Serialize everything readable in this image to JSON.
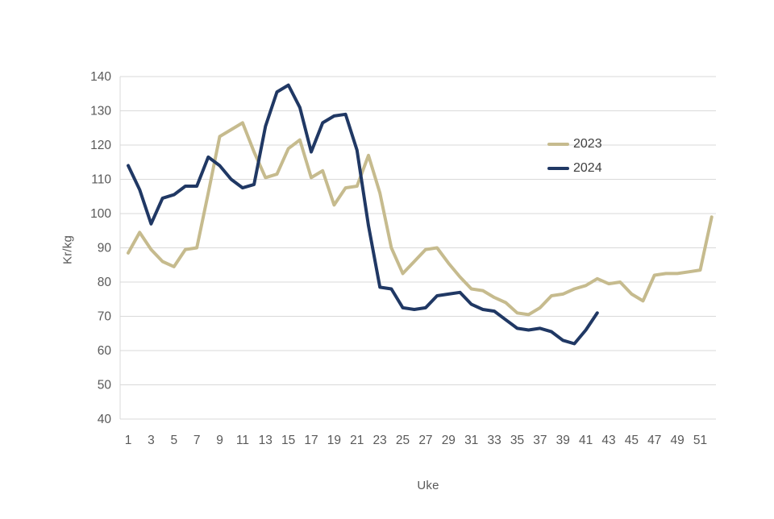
{
  "chart_data": {
    "type": "line",
    "title": "",
    "xlabel": "Uke",
    "ylabel": "Kr/kg",
    "ylim": [
      40,
      140
    ],
    "yticks": [
      140,
      130,
      120,
      110,
      100,
      90,
      80,
      70,
      60,
      50,
      40
    ],
    "xticks": [
      1,
      3,
      5,
      7,
      9,
      11,
      13,
      15,
      17,
      19,
      21,
      23,
      25,
      27,
      29,
      31,
      33,
      35,
      37,
      39,
      41,
      43,
      45,
      47,
      49,
      51
    ],
    "x_unit": "week",
    "grid": true,
    "legend_position": "right-middle",
    "colors": {
      "grid": "#d9d9d9",
      "axis": "#d9d9d9",
      "tick_text": "#595959",
      "legend_text": "#3f3f3f",
      "background": "#ffffff"
    },
    "series": [
      {
        "name": "2023",
        "color": "#c6bb8e",
        "start_week": 1,
        "values": [
          88.5,
          94.5,
          89.5,
          86,
          84.5,
          89.5,
          90,
          106,
          122.5,
          124.5,
          126.5,
          118,
          110.5,
          111.5,
          119,
          121.5,
          110.5,
          112.5,
          102.5,
          107.5,
          108,
          117,
          106,
          90,
          82.5,
          86,
          89.5,
          90,
          85.5,
          81.5,
          78,
          77.5,
          75.5,
          74,
          71,
          70.5,
          72.5,
          76,
          76.5,
          78,
          79,
          81,
          79.5,
          80,
          76.5,
          74.5,
          82,
          82.5,
          82.5,
          83,
          83.5,
          99
        ]
      },
      {
        "name": "2024",
        "color": "#203864",
        "start_week": 1,
        "values": [
          114,
          107,
          97,
          104.5,
          105.5,
          108,
          108,
          116.5,
          114,
          110,
          107.5,
          108.5,
          125.5,
          135.5,
          137.5,
          131,
          118,
          126.5,
          128.5,
          129,
          118.5,
          96.5,
          78.5,
          78,
          72.5,
          72,
          72.5,
          76,
          76.5,
          77,
          73.5,
          72,
          71.5,
          69,
          66.5,
          66,
          66.5,
          65.5,
          63,
          62,
          66,
          71
        ]
      }
    ]
  }
}
